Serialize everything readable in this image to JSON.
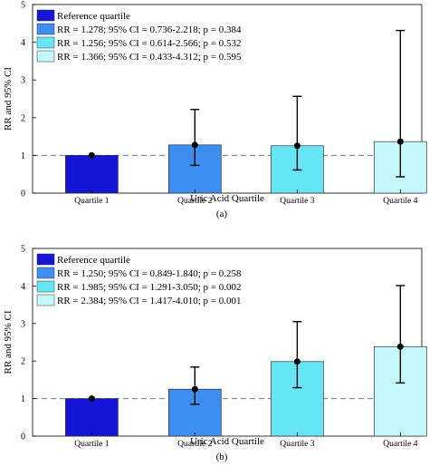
{
  "chart_data": [
    {
      "type": "bar",
      "caption": "(a)",
      "xlabel": "Uric Acid Quartile",
      "ylabel": "RR and 95% CI",
      "ylim": [
        0,
        5
      ],
      "yticks": [
        "0",
        "1",
        "2",
        "3",
        "4",
        "5"
      ],
      "reference_line": 1,
      "grid": false,
      "legend_position": "top-left",
      "categories": [
        "Quartile 1",
        "Quartile 2",
        "Quartile 3",
        "Quartile 4"
      ],
      "values": [
        1.0,
        1.278,
        1.256,
        1.366
      ],
      "ci_low": [
        1.0,
        0.736,
        0.614,
        0.433
      ],
      "ci_high": [
        1.0,
        2.218,
        2.566,
        4.312
      ],
      "colors": [
        "#1515d6",
        "#3d8ef0",
        "#66e6f5",
        "#c4f8fa"
      ],
      "legend": [
        "Reference quartile",
        "RR = 1.278; 95% CI = 0.736-2.218; p = 0.384",
        "RR = 1.256; 95% CI = 0.614-2.566; p = 0.532",
        "RR = 1.366; 95% CI = 0.433-4.312; p = 0.595"
      ]
    },
    {
      "type": "bar",
      "caption": "(b)",
      "xlabel": "Uric Acid Quartile",
      "ylabel": "RR and 95% CI",
      "ylim": [
        0,
        5
      ],
      "yticks": [
        "0",
        "1",
        "2",
        "3",
        "4",
        "5"
      ],
      "reference_line": 1,
      "grid": false,
      "legend_position": "top-left",
      "categories": [
        "Quartile 1",
        "Quartile 2",
        "Quartile 3",
        "Quartile 4"
      ],
      "values": [
        1.0,
        1.25,
        1.985,
        2.384
      ],
      "ci_low": [
        1.0,
        0.849,
        1.291,
        1.417
      ],
      "ci_high": [
        1.0,
        1.84,
        3.05,
        4.01
      ],
      "colors": [
        "#1515d6",
        "#3d8ef0",
        "#66e6f5",
        "#c4f8fa"
      ],
      "legend": [
        "Reference quartile",
        "RR = 1.250; 95% CI = 0.849-1.840; p = 0.258",
        "RR = 1.985; 95% CI = 1.291-3.050; p = 0.002",
        "RR = 2.384; 95% CI = 1.417-4.010; p = 0.001"
      ]
    }
  ]
}
